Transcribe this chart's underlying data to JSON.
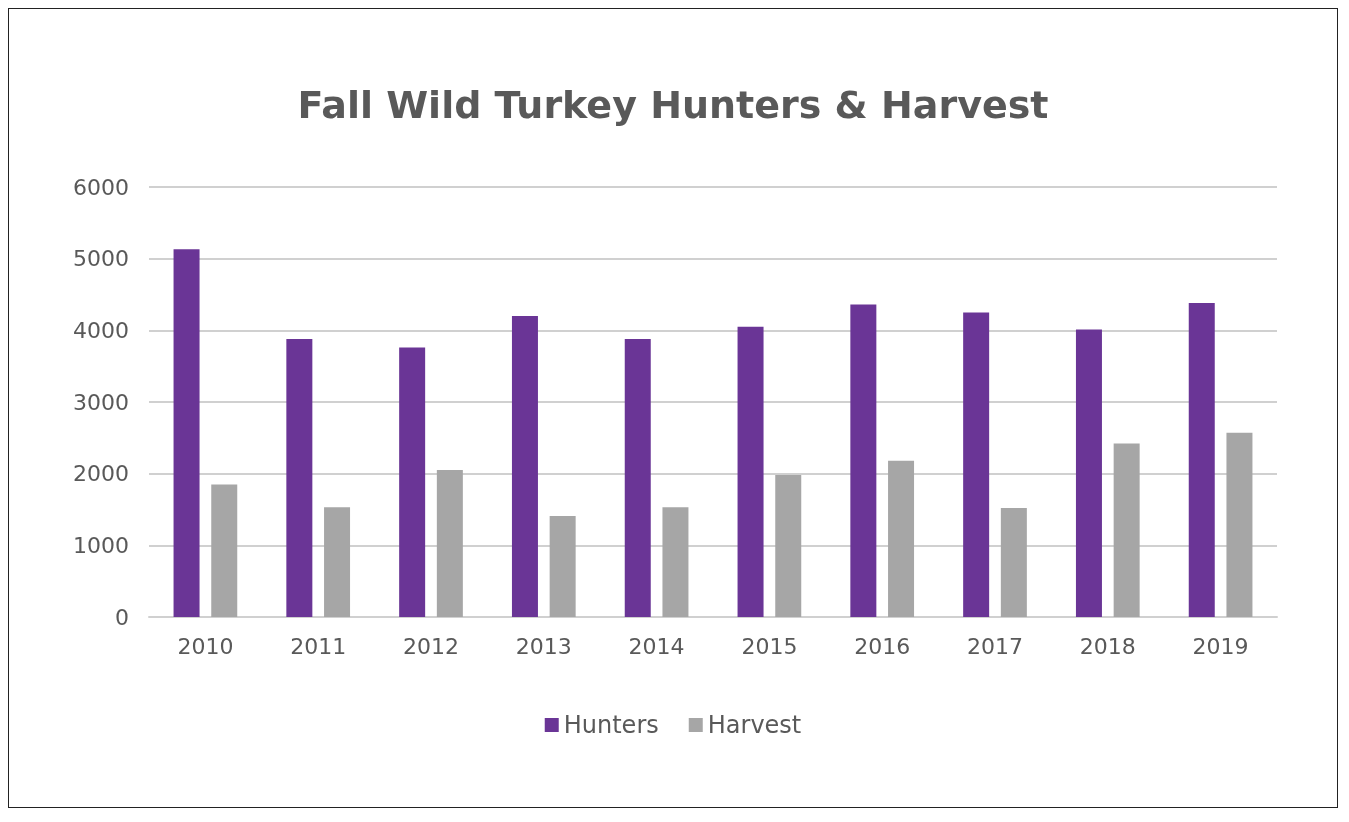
{
  "chart_data": {
    "type": "bar",
    "title": "Fall Wild Turkey Hunters & Harvest",
    "categories": [
      "2010",
      "2011",
      "2012",
      "2013",
      "2014",
      "2015",
      "2016",
      "2017",
      "2018",
      "2019"
    ],
    "series": [
      {
        "name": "Hunters",
        "color": "#6a3596",
        "values": [
          5130,
          3880,
          3760,
          4200,
          3880,
          4050,
          4360,
          4250,
          4010,
          4380
        ]
      },
      {
        "name": "Harvest",
        "color": "#a6a6a6",
        "values": [
          1850,
          1530,
          2050,
          1410,
          1530,
          1980,
          2180,
          1520,
          2420,
          2570
        ]
      }
    ],
    "ylim": [
      0,
      6000
    ],
    "yticks": [
      0,
      1000,
      2000,
      3000,
      4000,
      5000,
      6000
    ],
    "grid": "y",
    "legend": "bottom"
  }
}
